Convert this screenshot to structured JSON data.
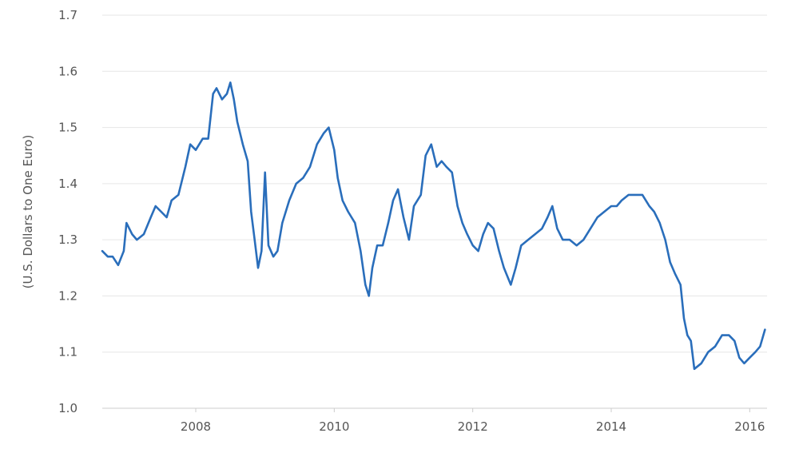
{
  "chart_data": {
    "type": "line",
    "title": "",
    "xlabel": "",
    "ylabel": "(U.S. Dollars to One Euro)",
    "xlim": [
      2006.65,
      2016.25
    ],
    "ylim": [
      1.0,
      1.7
    ],
    "grid": true,
    "legend": "none",
    "colors": {
      "line": "#2a6ebb",
      "grid": "#e6e6e6",
      "text": "#555555"
    },
    "x_ticks": [
      {
        "value": 2008,
        "label": "2008"
      },
      {
        "value": 2010,
        "label": "2010"
      },
      {
        "value": 2012,
        "label": "2012"
      },
      {
        "value": 2014,
        "label": "2014"
      },
      {
        "value": 2016,
        "label": "2016"
      }
    ],
    "y_ticks": [
      {
        "value": 1.0,
        "label": "1.0"
      },
      {
        "value": 1.1,
        "label": "1.1"
      },
      {
        "value": 1.2,
        "label": "1.2"
      },
      {
        "value": 1.3,
        "label": "1.3"
      },
      {
        "value": 1.4,
        "label": "1.4"
      },
      {
        "value": 1.5,
        "label": "1.5"
      },
      {
        "value": 1.6,
        "label": "1.6"
      },
      {
        "value": 1.7,
        "label": "1.7"
      }
    ],
    "series": [
      {
        "x": [
          2006.65,
          2006.73,
          2006.8,
          2006.88,
          2006.96,
          2007.0,
          2007.08,
          2007.15,
          2007.25,
          2007.35,
          2007.42,
          2007.5,
          2007.58,
          2007.65,
          2007.75,
          2007.85,
          2007.92,
          2008.0,
          2008.1,
          2008.18,
          2008.25,
          2008.3,
          2008.38,
          2008.45,
          2008.5,
          2008.55,
          2008.6,
          2008.68,
          2008.75,
          2008.8,
          2008.85,
          2008.9,
          2008.95,
          2009.0,
          2009.05,
          2009.12,
          2009.18,
          2009.25,
          2009.35,
          2009.45,
          2009.55,
          2009.65,
          2009.75,
          2009.85,
          2009.92,
          2010.0,
          2010.05,
          2010.12,
          2010.2,
          2010.3,
          2010.38,
          2010.45,
          2010.5,
          2010.55,
          2010.62,
          2010.7,
          2010.78,
          2010.85,
          2010.92,
          2011.0,
          2011.08,
          2011.15,
          2011.25,
          2011.32,
          2011.4,
          2011.48,
          2011.55,
          2011.62,
          2011.7,
          2011.78,
          2011.85,
          2011.92,
          2012.0,
          2012.08,
          2012.15,
          2012.22,
          2012.3,
          2012.38,
          2012.45,
          2012.55,
          2012.62,
          2012.7,
          2012.8,
          2012.9,
          2013.0,
          2013.08,
          2013.15,
          2013.22,
          2013.3,
          2013.4,
          2013.5,
          2013.6,
          2013.7,
          2013.8,
          2013.9,
          2014.0,
          2014.08,
          2014.15,
          2014.25,
          2014.35,
          2014.45,
          2014.55,
          2014.62,
          2014.7,
          2014.78,
          2014.85,
          2014.92,
          2015.0,
          2015.05,
          2015.1,
          2015.15,
          2015.2,
          2015.3,
          2015.4,
          2015.5,
          2015.6,
          2015.7,
          2015.78,
          2015.85,
          2015.92,
          2016.0,
          2016.08,
          2016.15,
          2016.22
        ],
        "y": [
          1.28,
          1.27,
          1.27,
          1.255,
          1.28,
          1.33,
          1.31,
          1.3,
          1.31,
          1.34,
          1.36,
          1.35,
          1.34,
          1.37,
          1.38,
          1.43,
          1.47,
          1.46,
          1.48,
          1.48,
          1.56,
          1.57,
          1.55,
          1.56,
          1.58,
          1.55,
          1.51,
          1.47,
          1.44,
          1.35,
          1.3,
          1.25,
          1.28,
          1.42,
          1.29,
          1.27,
          1.28,
          1.33,
          1.37,
          1.4,
          1.41,
          1.43,
          1.47,
          1.49,
          1.5,
          1.46,
          1.41,
          1.37,
          1.35,
          1.33,
          1.28,
          1.22,
          1.2,
          1.25,
          1.29,
          1.29,
          1.33,
          1.37,
          1.39,
          1.34,
          1.3,
          1.36,
          1.38,
          1.45,
          1.47,
          1.43,
          1.44,
          1.43,
          1.42,
          1.36,
          1.33,
          1.31,
          1.29,
          1.28,
          1.31,
          1.33,
          1.32,
          1.28,
          1.25,
          1.22,
          1.25,
          1.29,
          1.3,
          1.31,
          1.32,
          1.34,
          1.36,
          1.32,
          1.3,
          1.3,
          1.29,
          1.3,
          1.32,
          1.34,
          1.35,
          1.36,
          1.36,
          1.37,
          1.38,
          1.38,
          1.38,
          1.36,
          1.35,
          1.33,
          1.3,
          1.26,
          1.24,
          1.22,
          1.16,
          1.13,
          1.12,
          1.07,
          1.08,
          1.1,
          1.11,
          1.13,
          1.13,
          1.12,
          1.09,
          1.08,
          1.09,
          1.1,
          1.11,
          1.14
        ]
      }
    ]
  }
}
